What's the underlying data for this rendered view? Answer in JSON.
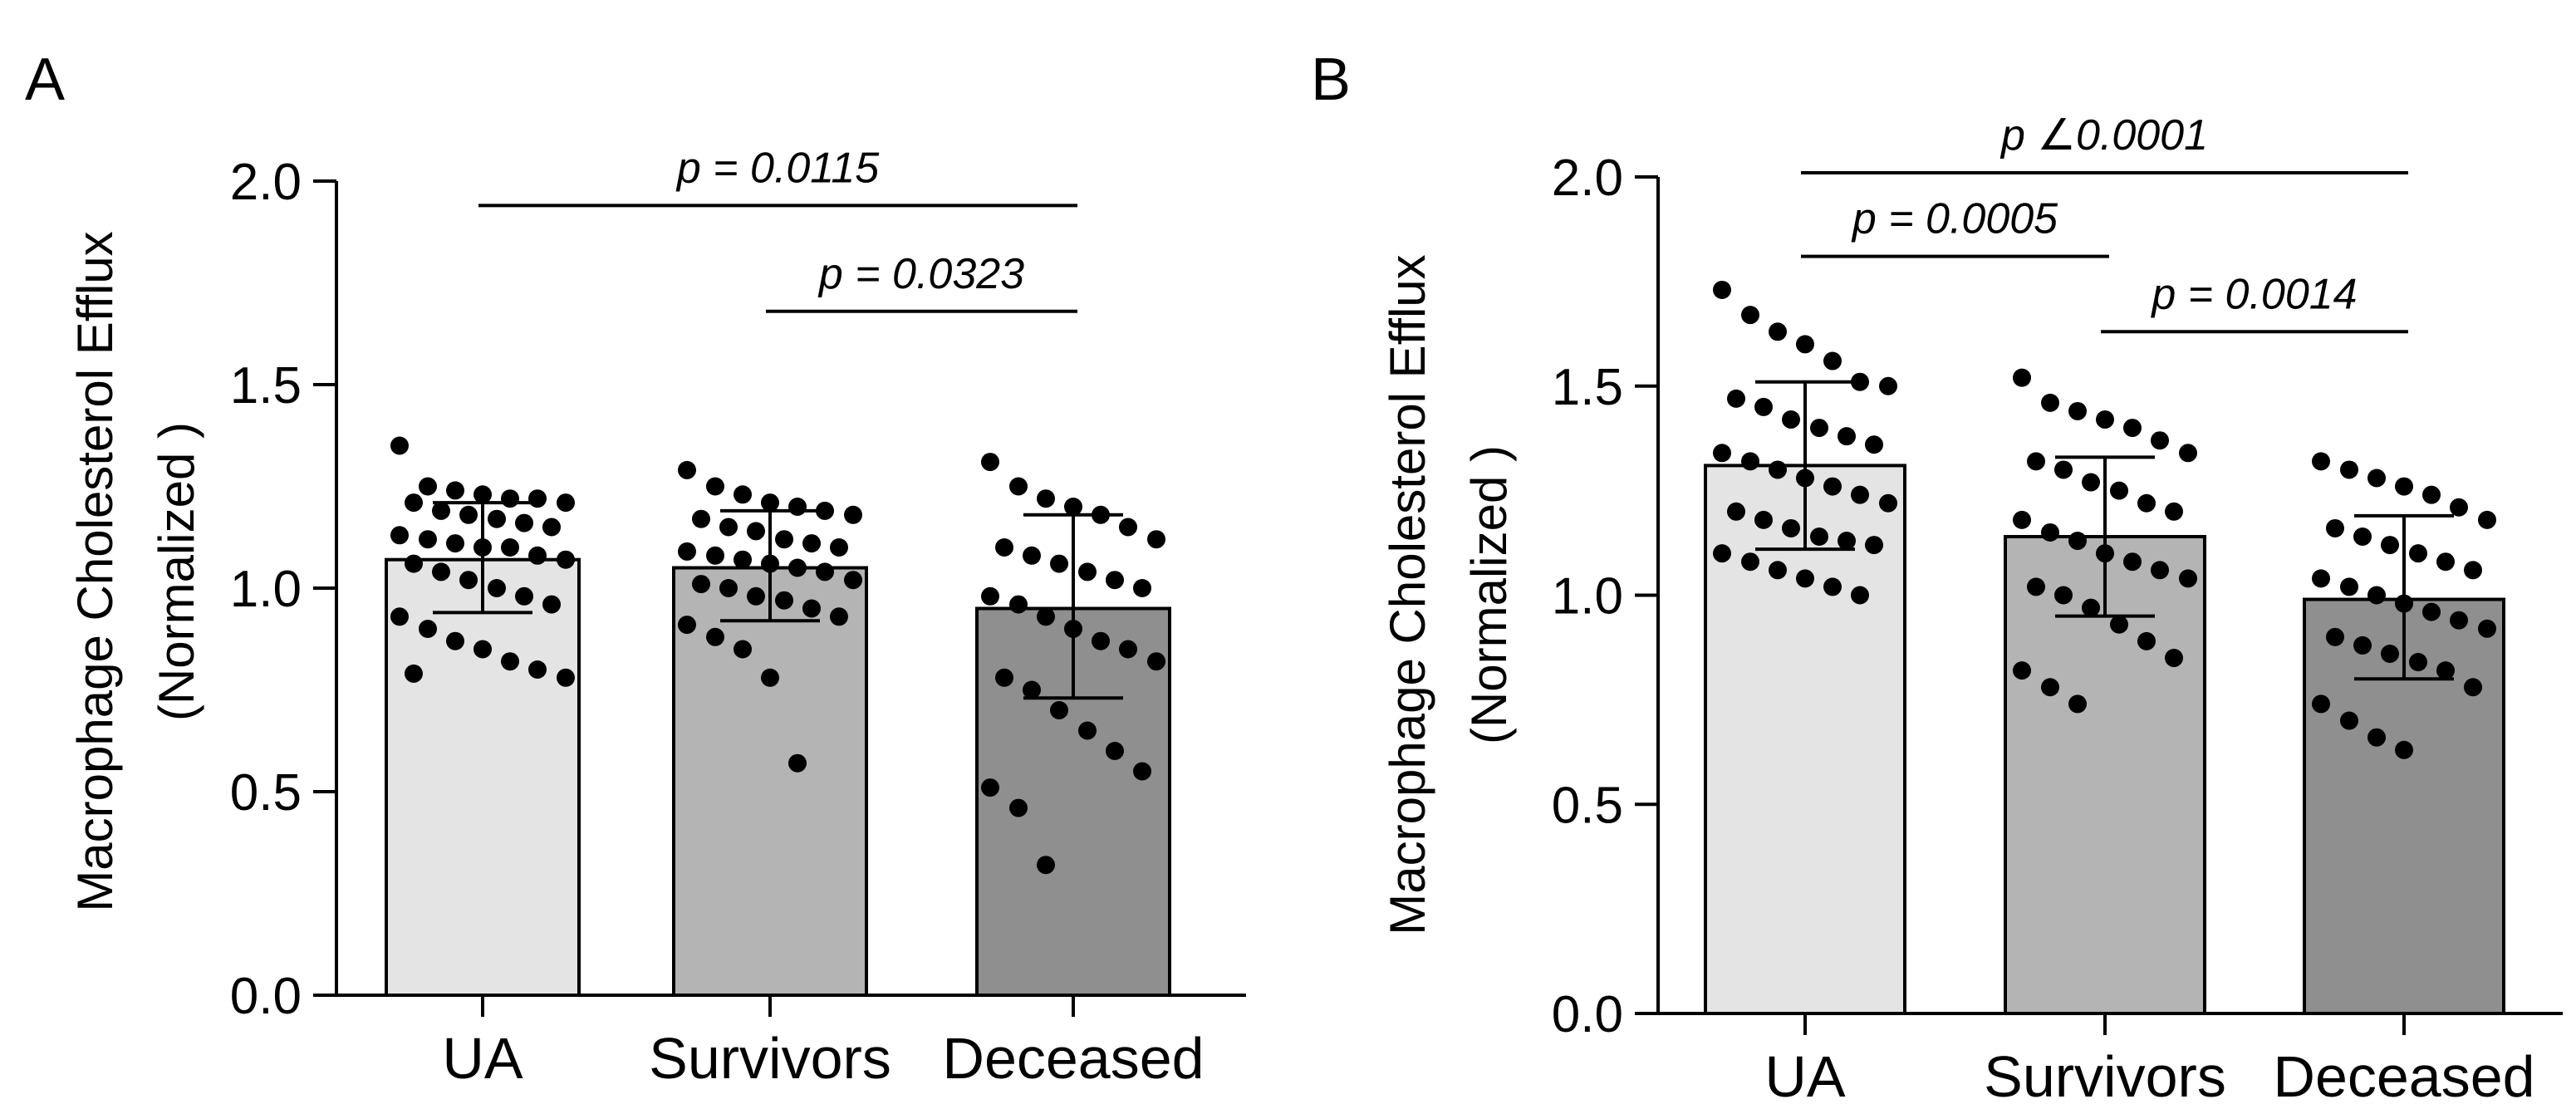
{
  "chart_data": [
    {
      "panel_label": "A",
      "type": "bar",
      "categories": [
        "UA",
        "Survivors",
        "Deceased"
      ],
      "ylabel_line1": "Macrophage Cholesterol Efflux",
      "ylabel_line2": "(Normalized )",
      "ylim": [
        0.0,
        2.0
      ],
      "yticks": [
        "0.0",
        "0.5",
        "1.0",
        "1.5",
        "2.0"
      ],
      "bar_colors": [
        "#e4e4e4",
        "#b4b4b4",
        "#8f8f8f"
      ],
      "means": [
        1.07,
        1.05,
        0.95
      ],
      "error_low": [
        0.94,
        0.92,
        0.73
      ],
      "error_high": [
        1.21,
        1.19,
        1.18
      ],
      "points": [
        [
          1.35,
          1.25,
          1.24,
          1.23,
          1.22,
          1.22,
          1.21,
          1.21,
          1.19,
          1.18,
          1.17,
          1.16,
          1.15,
          1.13,
          1.12,
          1.11,
          1.1,
          1.1,
          1.08,
          1.07,
          1.06,
          1.04,
          1.02,
          1.0,
          0.98,
          0.96,
          0.93,
          0.9,
          0.87,
          0.85,
          0.82,
          0.8,
          0.78,
          0.79
        ],
        [
          1.29,
          1.25,
          1.23,
          1.21,
          1.2,
          1.19,
          1.18,
          1.17,
          1.15,
          1.14,
          1.12,
          1.11,
          1.1,
          1.09,
          1.08,
          1.07,
          1.06,
          1.05,
          1.04,
          1.02,
          1.01,
          1.0,
          0.98,
          0.97,
          0.95,
          0.93,
          0.91,
          0.88,
          0.85,
          0.78,
          0.57
        ],
        [
          1.31,
          1.25,
          1.22,
          1.2,
          1.18,
          1.15,
          1.12,
          1.1,
          1.08,
          1.06,
          1.04,
          1.02,
          1.0,
          0.98,
          0.96,
          0.93,
          0.9,
          0.87,
          0.85,
          0.82,
          0.78,
          0.75,
          0.7,
          0.65,
          0.6,
          0.55,
          0.51,
          0.46,
          0.32
        ]
      ],
      "comparisons": [
        {
          "from": 0,
          "to": 2,
          "y": 1.94,
          "label": "p = 0.0115"
        },
        {
          "from": 1,
          "to": 2,
          "y": 1.68,
          "label": "p = 0.0323"
        }
      ]
    },
    {
      "panel_label": "B",
      "type": "bar",
      "categories": [
        "UA",
        "Survivors",
        "Deceased"
      ],
      "ylabel_line1": "Macrophage Cholesterol Efflux",
      "ylabel_line2": "(Normalized )",
      "ylim": [
        0.0,
        2.0
      ],
      "yticks": [
        "0.0",
        "0.5",
        "1.0",
        "1.5",
        "2.0"
      ],
      "bar_colors": [
        "#e4e4e4",
        "#b4b4b4",
        "#8f8f8f"
      ],
      "means": [
        1.31,
        1.14,
        0.99
      ],
      "error_low": [
        1.11,
        0.95,
        0.8
      ],
      "error_high": [
        1.51,
        1.33,
        1.19
      ],
      "points": [
        [
          1.73,
          1.67,
          1.63,
          1.6,
          1.56,
          1.51,
          1.5,
          1.47,
          1.45,
          1.42,
          1.4,
          1.38,
          1.36,
          1.34,
          1.32,
          1.3,
          1.28,
          1.26,
          1.24,
          1.22,
          1.2,
          1.18,
          1.16,
          1.14,
          1.13,
          1.12,
          1.1,
          1.08,
          1.06,
          1.04,
          1.02,
          1.0
        ],
        [
          1.52,
          1.46,
          1.44,
          1.42,
          1.4,
          1.37,
          1.34,
          1.32,
          1.3,
          1.27,
          1.25,
          1.22,
          1.2,
          1.18,
          1.15,
          1.13,
          1.1,
          1.08,
          1.06,
          1.04,
          1.02,
          1.0,
          0.97,
          0.93,
          0.89,
          0.85,
          0.82,
          0.78,
          0.74
        ],
        [
          1.32,
          1.3,
          1.28,
          1.26,
          1.24,
          1.21,
          1.18,
          1.16,
          1.14,
          1.12,
          1.1,
          1.08,
          1.06,
          1.04,
          1.02,
          1.0,
          0.98,
          0.96,
          0.94,
          0.92,
          0.9,
          0.88,
          0.86,
          0.84,
          0.82,
          0.78,
          0.74,
          0.7,
          0.66,
          0.63
        ]
      ],
      "comparisons": [
        {
          "from": 0,
          "to": 2,
          "y": 2.01,
          "label": "p ∠0.0001"
        },
        {
          "from": 0,
          "to": 1,
          "y": 1.81,
          "label": "p = 0.0005"
        },
        {
          "from": 1,
          "to": 2,
          "y": 1.63,
          "label": "p = 0.0014"
        }
      ]
    }
  ]
}
